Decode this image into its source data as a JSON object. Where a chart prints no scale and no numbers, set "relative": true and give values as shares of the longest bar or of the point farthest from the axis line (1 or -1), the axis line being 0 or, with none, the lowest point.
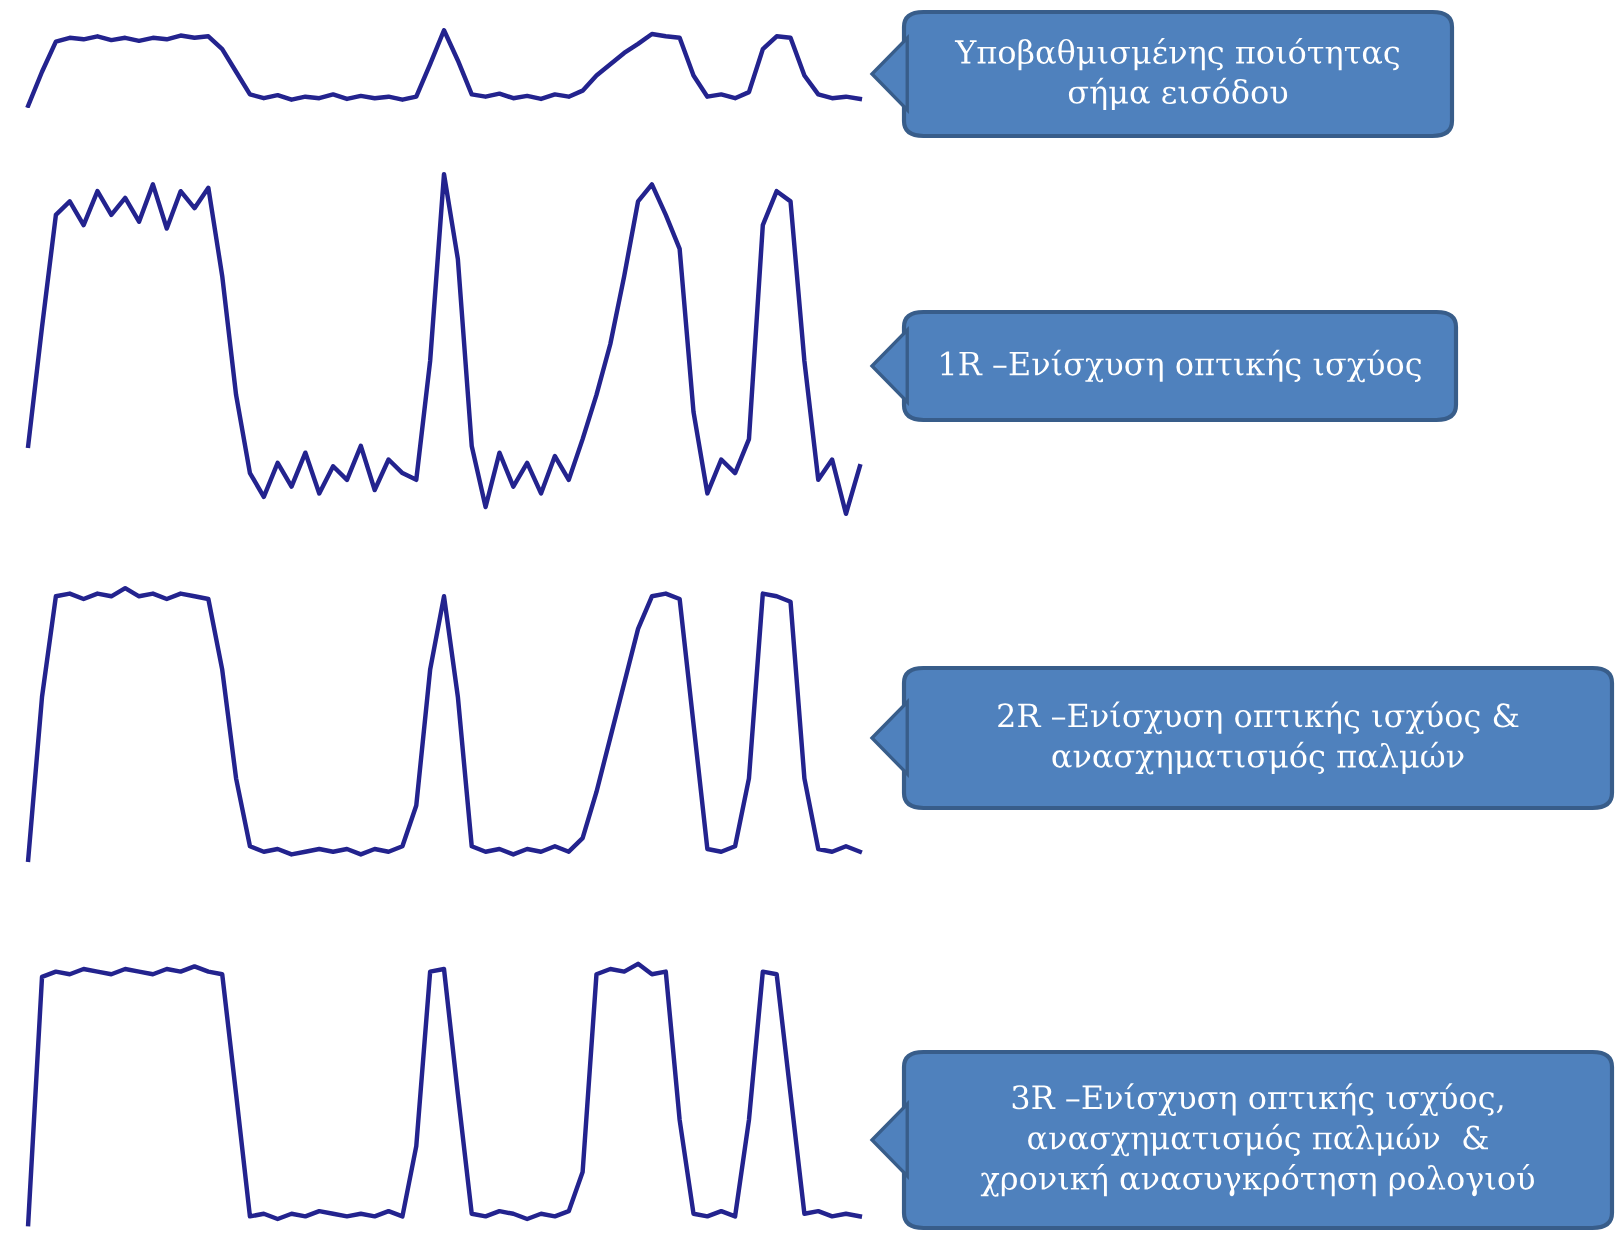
{
  "chart_data": [
    {
      "type": "line",
      "relative": true,
      "categories": [
        null,
        null,
        null,
        null,
        null,
        null,
        null,
        null,
        null,
        null,
        null,
        null,
        null,
        null,
        null,
        null,
        null,
        null,
        null,
        null,
        null,
        null,
        null,
        null,
        null,
        null,
        null,
        null,
        null,
        null,
        null,
        null,
        null,
        null,
        null,
        null,
        null,
        null,
        null,
        null,
        null,
        null,
        null,
        null,
        null,
        null,
        null,
        null,
        null,
        null,
        null,
        null,
        null,
        null,
        null,
        null,
        null,
        null,
        null,
        null,
        null
      ],
      "series": [
        {
          "color": "#23238e",
          "values": [
            0.0,
            0.45,
            0.85,
            0.9,
            0.88,
            0.92,
            0.87,
            0.9,
            0.86,
            0.9,
            0.88,
            0.93,
            0.9,
            0.92,
            0.75,
            0.45,
            0.15,
            0.1,
            0.14,
            0.08,
            0.12,
            0.1,
            0.15,
            0.09,
            0.13,
            0.1,
            0.12,
            0.08,
            0.12,
            0.55,
            1.0,
            0.6,
            0.15,
            0.12,
            0.16,
            0.1,
            0.13,
            0.09,
            0.15,
            0.12,
            0.2,
            0.4,
            0.55,
            0.7,
            0.82,
            0.95,
            0.92,
            0.9,
            0.4,
            0.12,
            0.15,
            0.1,
            0.18,
            0.75,
            0.92,
            0.9,
            0.4,
            0.15,
            0.1,
            0.12,
            0.09
          ]
        }
      ],
      "annotations": [
        "Υποβαθμισμένης ποιότητας\nσήμα εισόδου"
      ]
    },
    {
      "type": "line",
      "relative": true,
      "categories": [
        null,
        null,
        null,
        null,
        null,
        null,
        null,
        null,
        null,
        null,
        null,
        null,
        null,
        null,
        null,
        null,
        null,
        null,
        null,
        null,
        null,
        null,
        null,
        null,
        null,
        null,
        null,
        null,
        null,
        null,
        null,
        null,
        null,
        null,
        null,
        null,
        null,
        null,
        null,
        null,
        null,
        null,
        null,
        null,
        null,
        null,
        null,
        null,
        null,
        null,
        null,
        null,
        null,
        null,
        null,
        null,
        null,
        null,
        null,
        null,
        null
      ],
      "series": [
        {
          "color": "#23238e",
          "values": [
            0.2,
            0.55,
            0.88,
            0.92,
            0.85,
            0.95,
            0.88,
            0.93,
            0.86,
            0.97,
            0.84,
            0.95,
            0.9,
            0.96,
            0.7,
            0.35,
            0.12,
            0.05,
            0.15,
            0.08,
            0.18,
            0.06,
            0.14,
            0.1,
            0.2,
            0.07,
            0.16,
            0.12,
            0.1,
            0.45,
            1.0,
            0.75,
            0.2,
            0.02,
            0.18,
            0.08,
            0.15,
            0.06,
            0.17,
            0.1,
            0.22,
            0.35,
            0.5,
            0.7,
            0.92,
            0.97,
            0.88,
            0.78,
            0.3,
            0.06,
            0.16,
            0.12,
            0.22,
            0.85,
            0.95,
            0.92,
            0.45,
            0.1,
            0.16,
            0.0,
            0.14
          ]
        }
      ],
      "annotations": [
        "1R –Ενίσχυση οπτικής ισχύος"
      ]
    },
    {
      "type": "line",
      "relative": true,
      "categories": [
        null,
        null,
        null,
        null,
        null,
        null,
        null,
        null,
        null,
        null,
        null,
        null,
        null,
        null,
        null,
        null,
        null,
        null,
        null,
        null,
        null,
        null,
        null,
        null,
        null,
        null,
        null,
        null,
        null,
        null,
        null,
        null,
        null,
        null,
        null,
        null,
        null,
        null,
        null,
        null,
        null,
        null,
        null,
        null,
        null,
        null,
        null,
        null,
        null,
        null,
        null,
        null,
        null,
        null,
        null,
        null,
        null,
        null,
        null,
        null,
        null
      ],
      "series": [
        {
          "color": "#23238e",
          "values": [
            0.0,
            0.6,
            0.97,
            0.98,
            0.96,
            0.98,
            0.97,
            1.0,
            0.97,
            0.98,
            0.96,
            0.98,
            0.97,
            0.96,
            0.7,
            0.3,
            0.05,
            0.03,
            0.04,
            0.02,
            0.03,
            0.04,
            0.03,
            0.04,
            0.02,
            0.04,
            0.03,
            0.05,
            0.2,
            0.7,
            0.97,
            0.6,
            0.05,
            0.03,
            0.04,
            0.02,
            0.04,
            0.03,
            0.05,
            0.03,
            0.08,
            0.25,
            0.45,
            0.65,
            0.85,
            0.97,
            0.98,
            0.96,
            0.5,
            0.04,
            0.03,
            0.05,
            0.3,
            0.98,
            0.97,
            0.95,
            0.3,
            0.04,
            0.03,
            0.05,
            0.03
          ]
        }
      ],
      "annotations": [
        "2R –Ενίσχυση οπτικής ισχύος &\nανασχηματισμός παλμών"
      ]
    },
    {
      "type": "line",
      "relative": true,
      "categories": [
        null,
        null,
        null,
        null,
        null,
        null,
        null,
        null,
        null,
        null,
        null,
        null,
        null,
        null,
        null,
        null,
        null,
        null,
        null,
        null,
        null,
        null,
        null,
        null,
        null,
        null,
        null,
        null,
        null,
        null,
        null,
        null,
        null,
        null,
        null,
        null,
        null,
        null,
        null,
        null,
        null,
        null,
        null,
        null,
        null,
        null,
        null,
        null,
        null,
        null,
        null,
        null,
        null,
        null,
        null,
        null,
        null,
        null,
        null,
        null,
        null
      ],
      "series": [
        {
          "color": "#23238e",
          "values": [
            0.0,
            0.95,
            0.97,
            0.96,
            0.98,
            0.97,
            0.96,
            0.98,
            0.97,
            0.96,
            0.98,
            0.97,
            0.99,
            0.97,
            0.96,
            0.5,
            0.03,
            0.04,
            0.02,
            0.04,
            0.03,
            0.05,
            0.04,
            0.03,
            0.04,
            0.03,
            0.05,
            0.03,
            0.3,
            0.97,
            0.98,
            0.5,
            0.04,
            0.03,
            0.05,
            0.04,
            0.02,
            0.04,
            0.03,
            0.05,
            0.2,
            0.96,
            0.98,
            0.97,
            1.0,
            0.96,
            0.97,
            0.4,
            0.04,
            0.03,
            0.05,
            0.03,
            0.4,
            0.97,
            0.96,
            0.5,
            0.04,
            0.05,
            0.03,
            0.04,
            0.03
          ]
        }
      ],
      "annotations": [
        "3R –Ενίσχυση οπτικής ισχύος,\nανασχηματισμός παλμών  &\nχρονική ανασυγκρότηση ρολογιού"
      ]
    }
  ]
}
